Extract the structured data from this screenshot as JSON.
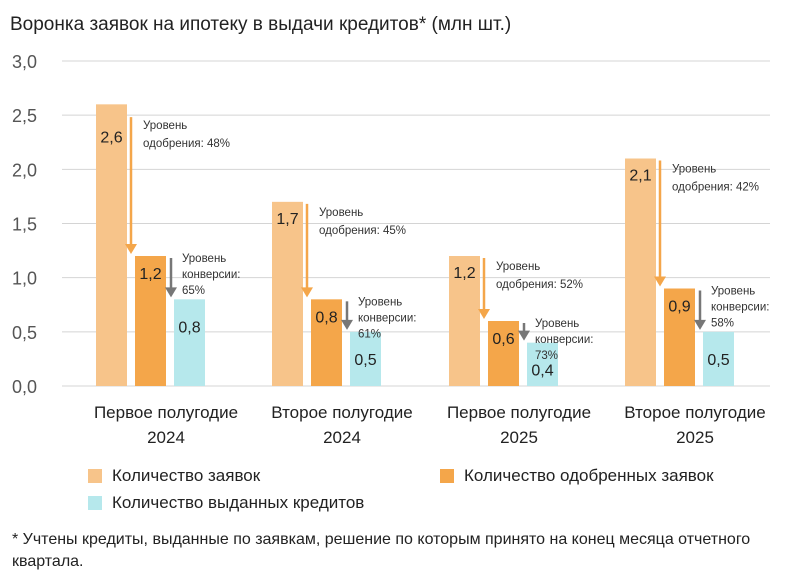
{
  "chart_data": {
    "type": "bar",
    "title": "Воронка заявок на ипотеку в выдачи кредитов* (млн шт.)",
    "categories": [
      [
        "Первое полугодие",
        "2024"
      ],
      [
        "Второе полугодие",
        "2024"
      ],
      [
        "Первое полугодие",
        "2025"
      ],
      [
        "Второе полугодие",
        "2025"
      ]
    ],
    "series": [
      {
        "name": "Количество заявок",
        "color": "#f7c48a",
        "values": [
          2.6,
          1.7,
          1.2,
          2.1
        ],
        "labels": [
          "2,6",
          "1,7",
          "1,2",
          "2,1"
        ]
      },
      {
        "name": "Количество одобренных заявок",
        "color": "#f4a64a",
        "values": [
          1.2,
          0.8,
          0.6,
          0.9
        ],
        "labels": [
          "1,2",
          "0,8",
          "0,6",
          "0,9"
        ]
      },
      {
        "name": "Количество выданных кредитов",
        "color": "#b6e8ec",
        "values": [
          0.8,
          0.5,
          0.4,
          0.5
        ],
        "labels": [
          "0,8",
          "0,5",
          "0,4",
          "0,5"
        ]
      }
    ],
    "ylim": [
      0,
      3.0
    ],
    "yticks": [
      0,
      0.5,
      1.0,
      1.5,
      2.0,
      2.5,
      3.0
    ],
    "ytick_labels": [
      "0,0",
      "0,5",
      "1,0",
      "1,5",
      "2,0",
      "2,5",
      "3,0"
    ],
    "grid": true,
    "annotations": {
      "approval": [
        {
          "lines": [
            "Уровень",
            "одобрения: 48%"
          ]
        },
        {
          "lines": [
            "Уровень",
            "одобрения: 45%"
          ]
        },
        {
          "lines": [
            "Уровень",
            "одобрения: 52%"
          ]
        },
        {
          "lines": [
            "Уровень",
            "одобрения: 42%"
          ]
        }
      ],
      "conversion": [
        {
          "lines": [
            "Уровень",
            "конверсии:",
            "65%"
          ]
        },
        {
          "lines": [
            "Уровень",
            "конверсии:",
            "61%"
          ]
        },
        {
          "lines": [
            "Уровень",
            "конверсии:",
            "73%"
          ]
        },
        {
          "lines": [
            "Уровень",
            "конверсии:",
            "58%"
          ]
        }
      ],
      "approval_arrow_color": "#f4a64a",
      "conversion_arrow_color": "#777777"
    },
    "legend_position": "bottom"
  },
  "footnote": "* Учтены кредиты, выданные по заявкам, решение по которым принято на конец месяца отчетного квартала."
}
